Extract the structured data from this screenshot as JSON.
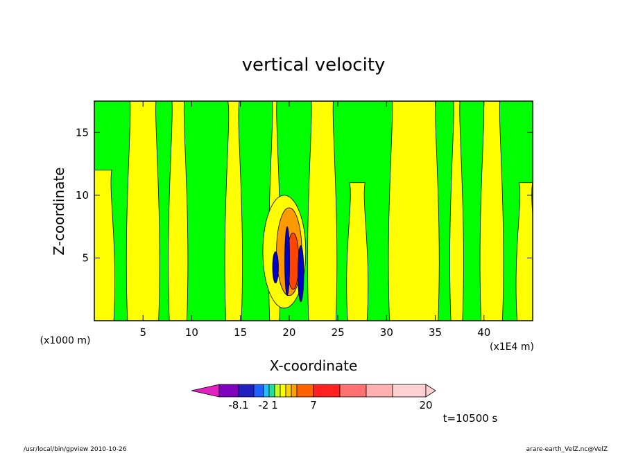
{
  "chart_data": {
    "type": "heatmap",
    "title": "vertical velocity",
    "xlabel": "X-coordinate",
    "ylabel": "Z-coordinate",
    "x_unit": "(x1E4 m)",
    "y_unit": "(x1000 m)",
    "xlim": [
      0,
      45
    ],
    "ylim": [
      0,
      17.5
    ],
    "x_ticks": [
      "5",
      "10",
      "15",
      "20",
      "25",
      "30",
      "35",
      "40"
    ],
    "x_tick_values": [
      5,
      10,
      15,
      20,
      25,
      30,
      35,
      40
    ],
    "y_ticks": [
      "5",
      "10",
      "15"
    ],
    "y_tick_values": [
      5,
      10,
      15
    ],
    "time_label": "t=10500 s",
    "colorbar": {
      "labels": [
        "-8.1",
        "-2",
        "1",
        "7",
        "20"
      ],
      "colors": [
        "#e020c0",
        "#8000c0",
        "#2020c0",
        "#2060ff",
        "#20c0ff",
        "#20e0a0",
        "#c0ff20",
        "#ffff00",
        "#ffd000",
        "#ffa000",
        "#ff6000",
        "#ff2020",
        "#ff7070",
        "#ffb0b0",
        "#ffd0d0"
      ],
      "field_colors": {
        "weak_downdraft": "#00ff00",
        "weak_updraft": "#ffff00",
        "moderate_updraft": "#ff9900",
        "strong": "#ff4400",
        "downdraft": "#0000cc"
      }
    },
    "grid": false
  },
  "footer": {
    "left": "/usr/local/bin/gpview  2010-10-26",
    "right": "arare-earth_VelZ.nc@VelZ"
  }
}
